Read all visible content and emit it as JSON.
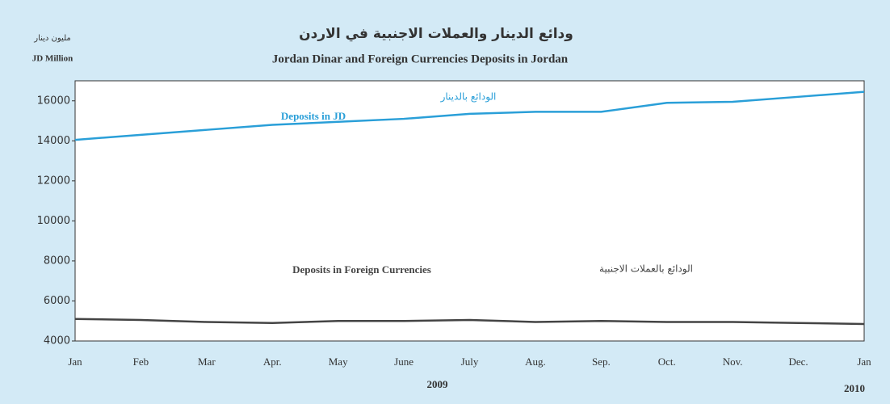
{
  "chart_data": {
    "type": "line",
    "title_ar": "ودائع الدينار والعملات الاجنبية في الاردن",
    "title": "Jordan Dinar and Foreign Currencies Deposits in Jordan",
    "y_label_ar": "مليون دينار",
    "y_label": "JD Million",
    "categories": [
      "Jan",
      "Feb",
      "Mar",
      "Apr.",
      "May",
      "June",
      "July",
      "Aug.",
      "Sep.",
      "Oct.",
      "Nov.",
      "Dec.",
      "Jan"
    ],
    "years": [
      "2009",
      "2010"
    ],
    "series": [
      {
        "name": "Deposits in JD",
        "name_ar": "الودائع بالدينار",
        "color": "#2a9fd8",
        "values": [
          14050,
          14300,
          14550,
          14800,
          14950,
          15100,
          15350,
          15450,
          15450,
          15900,
          15950,
          16200,
          16450
        ]
      },
      {
        "name": "Deposits in Foreign Currencies",
        "name_ar": "الودائع بالعملات الاجنبية",
        "color": "#444444",
        "values": [
          5100,
          5050,
          4950,
          4900,
          5000,
          5000,
          5050,
          4950,
          5000,
          4950,
          4950,
          4900,
          4850
        ]
      }
    ],
    "ylim": [
      4000,
      17000
    ],
    "yticks": [
      4000,
      6000,
      8000,
      10000,
      12000,
      14000,
      16000
    ],
    "grid": false
  }
}
